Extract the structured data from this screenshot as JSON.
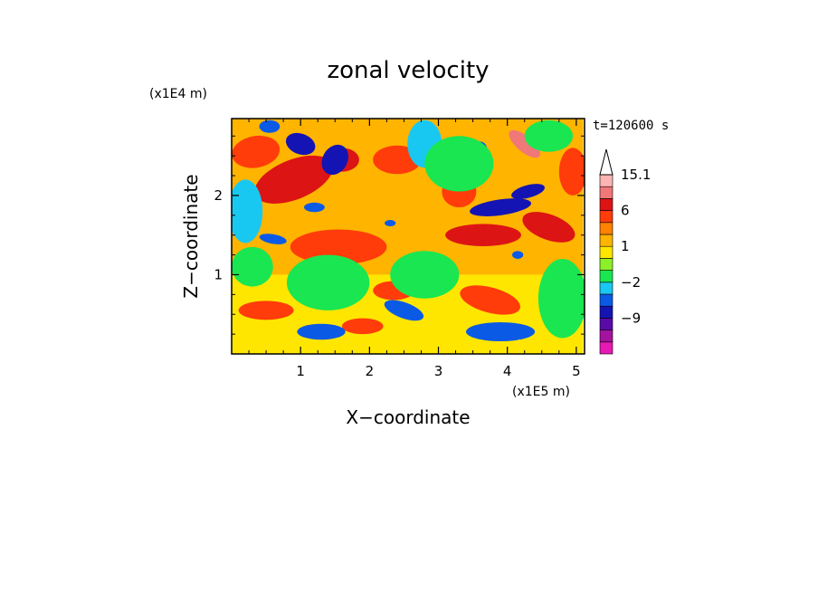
{
  "chart_data": {
    "type": "heatmap",
    "title": "zonal velocity",
    "xlabel": "X−coordinate",
    "ylabel": "Z−coordinate",
    "x_scale_label": "(x1E5 m)",
    "y_scale_label": "(x1E4 m)",
    "time_label": "t=120600 s",
    "xlim": [
      0,
      5.12
    ],
    "ylim": [
      0,
      2.97
    ],
    "x_ticks": [
      1,
      2,
      3,
      4,
      5
    ],
    "x_tick_labels": [
      "1",
      "2",
      "3",
      "4",
      "5"
    ],
    "y_ticks": [
      1,
      2
    ],
    "y_tick_labels": [
      "1",
      "2"
    ],
    "colorbar": {
      "levels": [
        -15,
        -12,
        -9,
        -6,
        -3,
        -2,
        -1,
        0,
        1,
        2,
        3,
        6,
        9,
        12,
        15.1
      ],
      "labeled_levels": [
        {
          "value": 15.1,
          "label": "15.1"
        },
        {
          "value": 6,
          "label": "6"
        },
        {
          "value": 1,
          "label": "1"
        },
        {
          "value": -2,
          "label": "−2"
        },
        {
          "value": -9,
          "label": "−9"
        }
      ],
      "colors": [
        "#e619b4",
        "#a3139e",
        "#5a0aa8",
        "#1414b4",
        "#0a5ae6",
        "#19c8f0",
        "#19e650",
        "#8cf028",
        "#ffe600",
        "#ffb400",
        "#ff8200",
        "#ff3c0a",
        "#dc1414",
        "#f07878",
        "#ffb4b4",
        "#ffffff"
      ],
      "extend": "max"
    },
    "features": [
      {
        "kind": "band",
        "value": 1.5,
        "x0": 0.0,
        "y0": 1.0,
        "x1": 5.1,
        "y1": 2.97
      },
      {
        "kind": "band",
        "value": 0.5,
        "x0": 0.0,
        "y0": 0.0,
        "x1": 5.1,
        "y1": 1.0
      },
      {
        "kind": "blob",
        "value": 6.0,
        "x": 0.9,
        "y": 2.2,
        "rx": 0.6,
        "ry": 0.25,
        "rot": 22
      },
      {
        "kind": "blob",
        "value": 6.0,
        "x": 1.6,
        "y": 2.45,
        "rx": 0.25,
        "ry": 0.15,
        "rot": 0
      },
      {
        "kind": "blob",
        "value": 4.0,
        "x": 0.35,
        "y": 2.55,
        "rx": 0.35,
        "ry": 0.2,
        "rot": 10
      },
      {
        "kind": "blob",
        "value": 4.0,
        "x": 2.4,
        "y": 2.45,
        "rx": 0.35,
        "ry": 0.18,
        "rot": 0
      },
      {
        "kind": "blob",
        "value": 6.0,
        "x": 3.65,
        "y": 1.5,
        "rx": 0.55,
        "ry": 0.14,
        "rot": 0
      },
      {
        "kind": "blob",
        "value": 6.0,
        "x": 4.6,
        "y": 1.6,
        "rx": 0.4,
        "ry": 0.16,
        "rot": -20
      },
      {
        "kind": "blob",
        "value": 9.0,
        "x": 4.25,
        "y": 2.65,
        "rx": 0.28,
        "ry": 0.1,
        "rot": -40
      },
      {
        "kind": "blob",
        "value": 4.0,
        "x": 3.75,
        "y": 0.68,
        "rx": 0.45,
        "ry": 0.16,
        "rot": -15
      },
      {
        "kind": "blob",
        "value": 3.5,
        "x": 1.55,
        "y": 1.35,
        "rx": 0.7,
        "ry": 0.22,
        "rot": 0
      },
      {
        "kind": "blob",
        "value": 3.5,
        "x": 2.35,
        "y": 0.8,
        "rx": 0.3,
        "ry": 0.12,
        "rot": 0
      },
      {
        "kind": "blob",
        "value": 3.0,
        "x": 0.5,
        "y": 0.55,
        "rx": 0.4,
        "ry": 0.12,
        "rot": 0
      },
      {
        "kind": "blob",
        "value": 3.0,
        "x": 1.9,
        "y": 0.35,
        "rx": 0.3,
        "ry": 0.1,
        "rot": 0
      },
      {
        "kind": "blob",
        "value": 3.5,
        "x": 3.3,
        "y": 2.05,
        "rx": 0.25,
        "ry": 0.2,
        "rot": 0
      },
      {
        "kind": "blob",
        "value": 3.0,
        "x": 4.95,
        "y": 2.3,
        "rx": 0.2,
        "ry": 0.3,
        "rot": 0
      },
      {
        "kind": "blob",
        "value": -7.0,
        "x": 1.5,
        "y": 2.45,
        "rx": 0.18,
        "ry": 0.2,
        "rot": -30
      },
      {
        "kind": "blob",
        "value": -7.0,
        "x": 1.0,
        "y": 2.65,
        "rx": 0.22,
        "ry": 0.13,
        "rot": -20
      },
      {
        "kind": "blob",
        "value": -6.0,
        "x": 0.55,
        "y": 2.87,
        "rx": 0.15,
        "ry": 0.08,
        "rot": 0
      },
      {
        "kind": "blob",
        "value": -8.0,
        "x": 3.9,
        "y": 1.85,
        "rx": 0.45,
        "ry": 0.1,
        "rot": 8
      },
      {
        "kind": "blob",
        "value": -7.0,
        "x": 4.3,
        "y": 2.05,
        "rx": 0.25,
        "ry": 0.08,
        "rot": 15
      },
      {
        "kind": "blob",
        "value": -5.0,
        "x": 0.6,
        "y": 1.45,
        "rx": 0.2,
        "ry": 0.06,
        "rot": -10
      },
      {
        "kind": "blob",
        "value": -5.0,
        "x": 1.2,
        "y": 1.85,
        "rx": 0.15,
        "ry": 0.06,
        "rot": 0
      },
      {
        "kind": "blob",
        "value": -6.0,
        "x": 2.95,
        "y": 2.4,
        "rx": 0.07,
        "ry": 0.09,
        "rot": 0
      },
      {
        "kind": "blob",
        "value": -5.0,
        "x": 3.6,
        "y": 2.6,
        "rx": 0.1,
        "ry": 0.08,
        "rot": 0
      },
      {
        "kind": "blob",
        "value": -5.0,
        "x": 4.15,
        "y": 1.25,
        "rx": 0.08,
        "ry": 0.05,
        "rot": 0
      },
      {
        "kind": "blob",
        "value": -5.0,
        "x": 2.3,
        "y": 1.65,
        "rx": 0.08,
        "ry": 0.04,
        "rot": 0
      },
      {
        "kind": "blob",
        "value": -3.5,
        "x": 1.3,
        "y": 0.28,
        "rx": 0.35,
        "ry": 0.1,
        "rot": 0
      },
      {
        "kind": "blob",
        "value": -3.5,
        "x": 3.9,
        "y": 0.28,
        "rx": 0.5,
        "ry": 0.12,
        "rot": 0
      },
      {
        "kind": "blob",
        "value": -3.5,
        "x": 2.5,
        "y": 0.55,
        "rx": 0.3,
        "ry": 0.1,
        "rot": -20
      },
      {
        "kind": "blob",
        "value": -3.0,
        "x": 0.2,
        "y": 1.8,
        "rx": 0.25,
        "ry": 0.4,
        "rot": 0
      },
      {
        "kind": "blob",
        "value": -3.0,
        "x": 2.8,
        "y": 2.65,
        "rx": 0.25,
        "ry": 0.3,
        "rot": 0
      },
      {
        "kind": "blob",
        "value": -1.5,
        "x": 1.4,
        "y": 0.9,
        "rx": 0.6,
        "ry": 0.35,
        "rot": 0
      },
      {
        "kind": "blob",
        "value": -1.5,
        "x": 2.8,
        "y": 1.0,
        "rx": 0.5,
        "ry": 0.3,
        "rot": 0
      },
      {
        "kind": "blob",
        "value": -1.5,
        "x": 3.3,
        "y": 2.4,
        "rx": 0.5,
        "ry": 0.35,
        "rot": 0
      },
      {
        "kind": "blob",
        "value": -1.5,
        "x": 4.8,
        "y": 0.7,
        "rx": 0.35,
        "ry": 0.5,
        "rot": 0
      },
      {
        "kind": "blob",
        "value": -1.5,
        "x": 0.3,
        "y": 1.1,
        "rx": 0.3,
        "ry": 0.25,
        "rot": 0
      },
      {
        "kind": "blob",
        "value": -1.5,
        "x": 4.6,
        "y": 2.75,
        "rx": 0.35,
        "ry": 0.2,
        "rot": 0
      }
    ]
  }
}
